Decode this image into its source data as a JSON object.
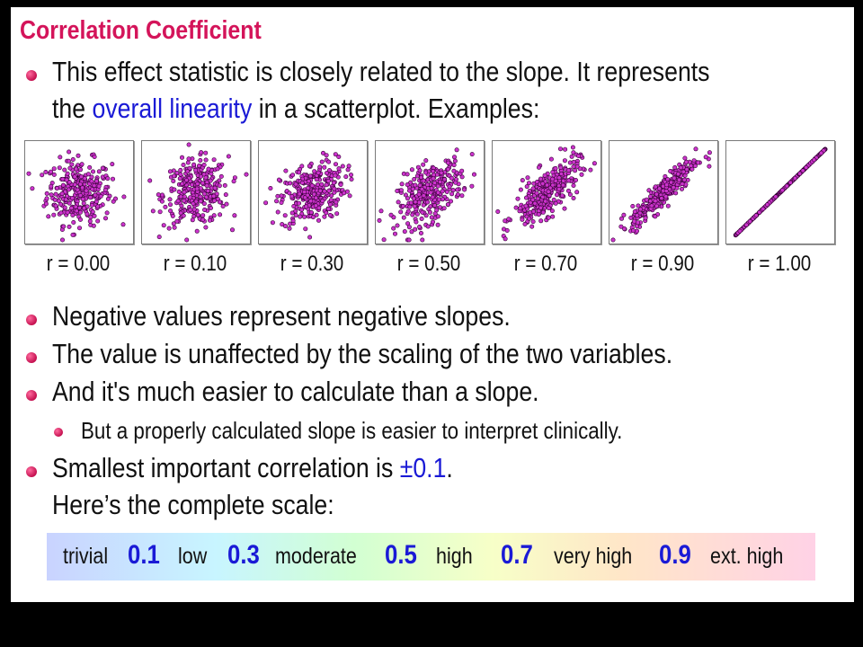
{
  "slide": {
    "title": "Correlation Coefficient",
    "bullet1": {
      "line1": "This effect statistic is closely related to the slope. It represents",
      "line2_pre": "the ",
      "line2_highlight": "overall linearity",
      "line2_post": " in a scatterplot. Examples:"
    },
    "examples": [
      {
        "label": "r = 0.00",
        "r": 0.0
      },
      {
        "label": "r = 0.10",
        "r": 0.1
      },
      {
        "label": "r = 0.30",
        "r": 0.3
      },
      {
        "label": "r = 0.50",
        "r": 0.5
      },
      {
        "label": "r = 0.70",
        "r": 0.7
      },
      {
        "label": "r = 0.90",
        "r": 0.9
      },
      {
        "label": "r = 1.00",
        "r": 1.0
      }
    ],
    "bullet2": "Negative values represent negative slopes.",
    "bullet3": "The value is unaffected by the scaling of the two variables.",
    "bullet4": "And it's much easier to calculate than a slope.",
    "sub_bullet": "But a properly calculated slope is easier to interpret clinically.",
    "bullet5": {
      "pre": "Smallest important correlation is ",
      "value": "±0.1",
      "post": ".",
      "line2": "Here’s the complete scale:"
    },
    "scale": {
      "words": [
        "trivial",
        "low",
        "moderate",
        "high",
        "very high",
        "ext. high"
      ],
      "thresholds": [
        "0.1",
        "0.3",
        "0.5",
        "0.7",
        "0.9"
      ]
    }
  },
  "colors": {
    "title": "#d4145a",
    "highlight": "#1a1ad6",
    "point_fill": "#cc33cc",
    "point_stroke": "#330033"
  }
}
